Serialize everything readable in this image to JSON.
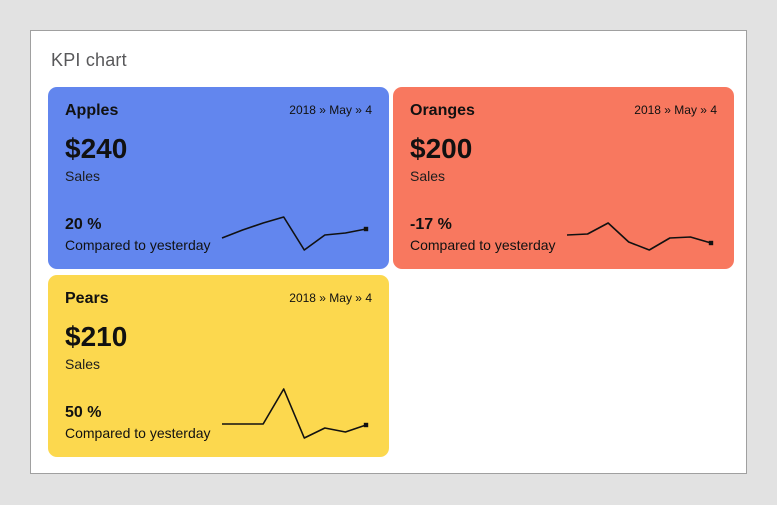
{
  "panel": {
    "title": "KPI chart"
  },
  "colors": {
    "page_bg": "#e2e2e2",
    "panel_bg": "#ffffff",
    "panel_border": "#a0a0a0",
    "title_text": "#58585a",
    "card_text": "#111111",
    "spark_line": "#111111"
  },
  "cards": [
    {
      "id": "apples",
      "title": "Apples",
      "date": "2018 » May » 4",
      "value": "$240",
      "value_label": "Sales",
      "percent": "20 %",
      "compare_label": "Compared to yesterday",
      "bg_color": "#6286ee",
      "sparkline": [
        18,
        26,
        33,
        39,
        6,
        21,
        23,
        27
      ]
    },
    {
      "id": "oranges",
      "title": "Oranges",
      "date": "2018 » May » 4",
      "value": "$200",
      "value_label": "Sales",
      "percent": "-17 %",
      "compare_label": "Compared to yesterday",
      "bg_color": "#f8785f",
      "sparkline": [
        29,
        30,
        41,
        22,
        14,
        26,
        27,
        21
      ]
    },
    {
      "id": "pears",
      "title": "Pears",
      "date": "2018 » May » 4",
      "value": "$210",
      "value_label": "Sales",
      "percent": "50 %",
      "compare_label": "Compared to yesterday",
      "bg_color": "#fcd84e",
      "sparkline": [
        27,
        27,
        27,
        62,
        13,
        23,
        19,
        26
      ]
    }
  ],
  "chart_data": [
    {
      "type": "line",
      "title": "Apples",
      "kpi_value": "$240",
      "kpi_value_label": "Sales",
      "change_percent": "20 %",
      "change_caption": "Compared to yesterday",
      "breadcrumb": "2018 » May » 4",
      "x": [
        1,
        2,
        3,
        4,
        5,
        6,
        7,
        8
      ],
      "values": [
        18,
        26,
        33,
        39,
        6,
        21,
        23,
        27
      ],
      "style": "sparkline, no axes, no grid, end-point marker",
      "card_color": "#6286ee"
    },
    {
      "type": "line",
      "title": "Oranges",
      "kpi_value": "$200",
      "kpi_value_label": "Sales",
      "change_percent": "-17 %",
      "change_caption": "Compared to yesterday",
      "breadcrumb": "2018 » May » 4",
      "x": [
        1,
        2,
        3,
        4,
        5,
        6,
        7,
        8
      ],
      "values": [
        29,
        30,
        41,
        22,
        14,
        26,
        27,
        21
      ],
      "style": "sparkline, no axes, no grid, end-point marker",
      "card_color": "#f8785f"
    },
    {
      "type": "line",
      "title": "Pears",
      "kpi_value": "$210",
      "kpi_value_label": "Sales",
      "change_percent": "50 %",
      "change_caption": "Compared to yesterday",
      "breadcrumb": "2018 » May » 4",
      "x": [
        1,
        2,
        3,
        4,
        5,
        6,
        7,
        8
      ],
      "values": [
        27,
        27,
        27,
        62,
        13,
        23,
        19,
        26
      ],
      "style": "sparkline, no axes, no grid, end-point marker",
      "card_color": "#fcd84e"
    }
  ]
}
